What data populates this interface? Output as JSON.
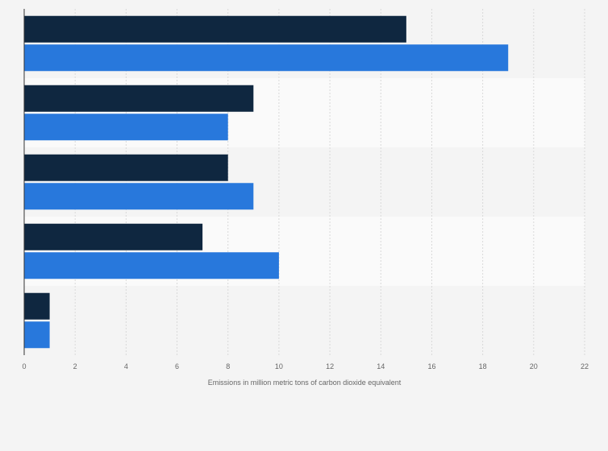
{
  "chart_data": {
    "type": "bar",
    "orientation": "horizontal",
    "title": "",
    "xlabel": "Emissions in million metric tons of carbon dioxide equivalent",
    "ylabel": "",
    "xlim": [
      0,
      22
    ],
    "x_ticks": [
      0,
      2,
      4,
      6,
      8,
      10,
      12,
      14,
      16,
      18,
      20,
      22
    ],
    "categories": [
      "",
      "",
      "",
      "",
      ""
    ],
    "series": [
      {
        "color": "#0f2740",
        "values": [
          15,
          9,
          8,
          7,
          1
        ]
      },
      {
        "color": "#2878dc",
        "values": [
          19,
          8,
          9,
          10,
          1
        ]
      }
    ],
    "grid": true,
    "legend": "none"
  }
}
